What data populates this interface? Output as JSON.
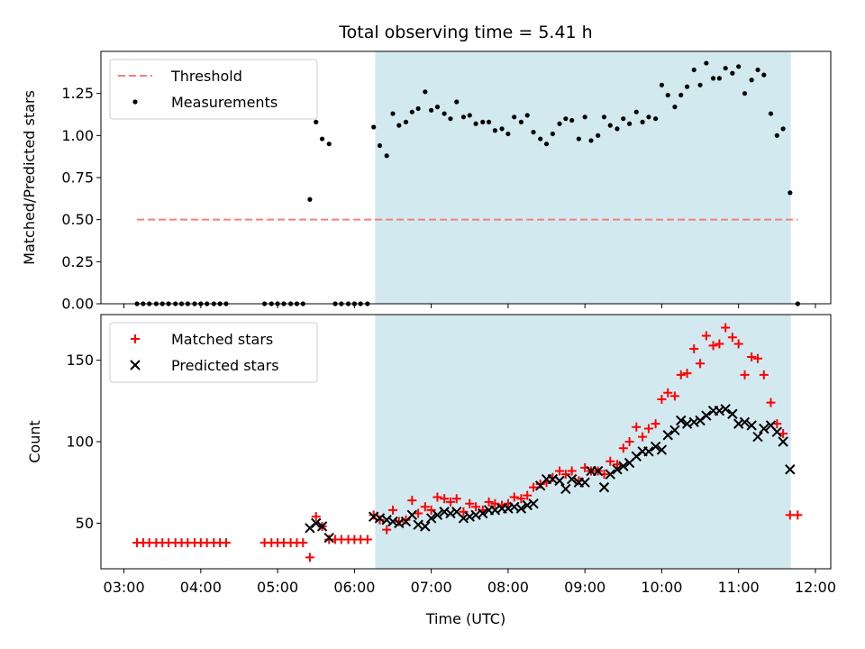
{
  "figure": {
    "title": "Total observing time = 5.41 h",
    "xlabel": "Time (UTC)",
    "x_tick_labels": [
      "03:00",
      "04:00",
      "05:00",
      "06:00",
      "07:00",
      "08:00",
      "09:00",
      "10:00",
      "11:00",
      "12:00"
    ]
  },
  "colors": {
    "observing_window": "#d3e9f0",
    "threshold": "#f08080",
    "measurements": "#000000",
    "matched": "#ff0000",
    "predicted": "#000000"
  },
  "chart_data": [
    {
      "type": "scatter",
      "ylabel": "Matched/Predicted stars",
      "x_unit": "hours UTC",
      "xlim": [
        2.7,
        12.2
      ],
      "ylim": [
        0,
        1.5
      ],
      "y_ticks": [
        0,
        0.25,
        0.5,
        0.75,
        1.0,
        1.25
      ],
      "y_tick_labels": [
        "0.00",
        "0.25",
        "0.50",
        "0.75",
        "1.00",
        "1.25"
      ],
      "legend_position": "top-left",
      "shaded_span": [
        6.27,
        11.68
      ],
      "threshold": {
        "name": "Threshold",
        "y": 0.5,
        "x_range": [
          3.17,
          11.77
        ],
        "style": "dashed"
      },
      "series": [
        {
          "name": "Measurements",
          "marker": "dot",
          "x": [
            3.17,
            3.25,
            3.33,
            3.42,
            3.5,
            3.58,
            3.67,
            3.75,
            3.83,
            3.92,
            4.0,
            4.08,
            4.17,
            4.25,
            4.33,
            4.83,
            4.92,
            5.0,
            5.08,
            5.17,
            5.25,
            5.33,
            5.42,
            5.5,
            5.58,
            5.67,
            5.75,
            5.83,
            5.92,
            6.0,
            6.08,
            6.17,
            6.25,
            6.33,
            6.42,
            6.5,
            6.58,
            6.67,
            6.75,
            6.83,
            6.92,
            7.0,
            7.08,
            7.17,
            7.25,
            7.33,
            7.42,
            7.5,
            7.58,
            7.67,
            7.75,
            7.83,
            7.92,
            8.0,
            8.08,
            8.17,
            8.25,
            8.33,
            8.42,
            8.5,
            8.58,
            8.67,
            8.75,
            8.83,
            8.92,
            9.0,
            9.08,
            9.17,
            9.25,
            9.33,
            9.42,
            9.5,
            9.58,
            9.67,
            9.75,
            9.83,
            9.92,
            10.0,
            10.08,
            10.17,
            10.25,
            10.33,
            10.42,
            10.5,
            10.58,
            10.67,
            10.75,
            10.83,
            10.92,
            11.0,
            11.08,
            11.17,
            11.25,
            11.33,
            11.42,
            11.5,
            11.58,
            11.67,
            11.77
          ],
          "y": [
            0,
            0,
            0,
            0,
            0,
            0,
            0,
            0,
            0,
            0,
            0,
            0,
            0,
            0,
            0,
            0,
            0,
            0,
            0,
            0,
            0,
            0,
            0.62,
            1.08,
            0.98,
            0.95,
            0,
            0,
            0,
            0,
            0,
            0,
            1.05,
            0.94,
            0.88,
            1.13,
            1.06,
            1.08,
            1.14,
            1.16,
            1.26,
            1.15,
            1.17,
            1.13,
            1.1,
            1.2,
            1.11,
            1.12,
            1.07,
            1.08,
            1.08,
            1.03,
            1.04,
            1.01,
            1.11,
            1.08,
            1.12,
            1.02,
            0.98,
            0.95,
            1.01,
            1.07,
            1.1,
            1.09,
            0.98,
            1.11,
            0.97,
            1.0,
            1.11,
            1.06,
            1.04,
            1.1,
            1.07,
            1.14,
            1.08,
            1.11,
            1.1,
            1.3,
            1.24,
            1.17,
            1.24,
            1.29,
            1.39,
            1.3,
            1.43,
            1.34,
            1.34,
            1.4,
            1.37,
            1.41,
            1.25,
            1.33,
            1.39,
            1.36,
            1.13,
            1.0,
            1.04,
            0.66,
            0
          ]
        }
      ]
    },
    {
      "type": "scatter",
      "ylabel": "Count",
      "x_unit": "hours UTC",
      "xlim": [
        2.7,
        12.2
      ],
      "ylim": [
        22,
        178
      ],
      "y_ticks": [
        50,
        100,
        150
      ],
      "y_tick_labels": [
        "50",
        "100",
        "150"
      ],
      "legend_position": "top-left",
      "shaded_span": [
        6.27,
        11.68
      ],
      "series": [
        {
          "name": "Matched stars",
          "marker": "plus",
          "x": [
            3.17,
            3.25,
            3.33,
            3.42,
            3.5,
            3.58,
            3.67,
            3.75,
            3.83,
            3.92,
            4.0,
            4.08,
            4.17,
            4.25,
            4.33,
            4.83,
            4.92,
            5.0,
            5.08,
            5.17,
            5.25,
            5.33,
            5.42,
            5.5,
            5.58,
            5.67,
            5.75,
            5.83,
            5.92,
            6.0,
            6.08,
            6.17,
            6.25,
            6.33,
            6.42,
            6.5,
            6.58,
            6.67,
            6.75,
            6.83,
            6.92,
            7.0,
            7.08,
            7.17,
            7.25,
            7.33,
            7.42,
            7.5,
            7.58,
            7.67,
            7.75,
            7.83,
            7.92,
            8.0,
            8.08,
            8.17,
            8.25,
            8.33,
            8.42,
            8.5,
            8.58,
            8.67,
            8.75,
            8.83,
            8.92,
            9.0,
            9.08,
            9.17,
            9.25,
            9.33,
            9.42,
            9.5,
            9.58,
            9.67,
            9.75,
            9.83,
            9.92,
            10.0,
            10.08,
            10.17,
            10.25,
            10.33,
            10.42,
            10.5,
            10.58,
            10.67,
            10.75,
            10.83,
            10.92,
            11.0,
            11.08,
            11.17,
            11.25,
            11.33,
            11.42,
            11.5,
            11.58,
            11.67,
            11.77
          ],
          "y": [
            38,
            38,
            38,
            38,
            38,
            38,
            38,
            38,
            38,
            38,
            38,
            38,
            38,
            38,
            38,
            38,
            38,
            38,
            38,
            38,
            38,
            38,
            29,
            54,
            48,
            40,
            40,
            40,
            40,
            40,
            40,
            40,
            55,
            52,
            46,
            58,
            51,
            52,
            64,
            56,
            60,
            58,
            66,
            65,
            63,
            65,
            57,
            62,
            60,
            58,
            63,
            62,
            61,
            62,
            66,
            65,
            67,
            72,
            74,
            75,
            78,
            82,
            80,
            82,
            76,
            84,
            82,
            82,
            80,
            88,
            86,
            96,
            100,
            109,
            103,
            108,
            111,
            126,
            130,
            128,
            141,
            142,
            157,
            148,
            165,
            159,
            160,
            170,
            164,
            160,
            141,
            152,
            151,
            141,
            124,
            111,
            105,
            55,
            55
          ]
        },
        {
          "name": "Predicted stars",
          "marker": "cross",
          "x": [
            5.42,
            5.5,
            5.58,
            5.67,
            6.25,
            6.33,
            6.42,
            6.5,
            6.58,
            6.67,
            6.75,
            6.83,
            6.92,
            7.0,
            7.08,
            7.17,
            7.25,
            7.33,
            7.42,
            7.5,
            7.58,
            7.67,
            7.75,
            7.83,
            7.92,
            8.0,
            8.08,
            8.17,
            8.25,
            8.33,
            8.42,
            8.5,
            8.58,
            8.67,
            8.75,
            8.83,
            8.92,
            9.0,
            9.08,
            9.17,
            9.25,
            9.33,
            9.42,
            9.5,
            9.58,
            9.67,
            9.75,
            9.83,
            9.92,
            10.0,
            10.08,
            10.17,
            10.25,
            10.33,
            10.42,
            10.5,
            10.58,
            10.67,
            10.75,
            10.83,
            10.92,
            11.0,
            11.08,
            11.17,
            11.25,
            11.33,
            11.42,
            11.5,
            11.58,
            11.67
          ],
          "y": [
            47,
            50,
            48,
            41,
            54,
            53,
            52,
            51,
            50,
            51,
            55,
            49,
            48,
            53,
            55,
            57,
            56,
            57,
            53,
            54,
            55,
            56,
            58,
            58,
            59,
            59,
            60,
            59,
            61,
            62,
            73,
            77,
            77,
            76,
            71,
            77,
            75,
            75,
            82,
            82,
            72,
            80,
            83,
            85,
            87,
            91,
            94,
            94,
            97,
            95,
            104,
            107,
            113,
            111,
            112,
            113,
            116,
            119,
            119,
            120,
            117,
            111,
            112,
            110,
            103,
            108,
            110,
            106,
            100,
            83
          ]
        }
      ]
    }
  ]
}
